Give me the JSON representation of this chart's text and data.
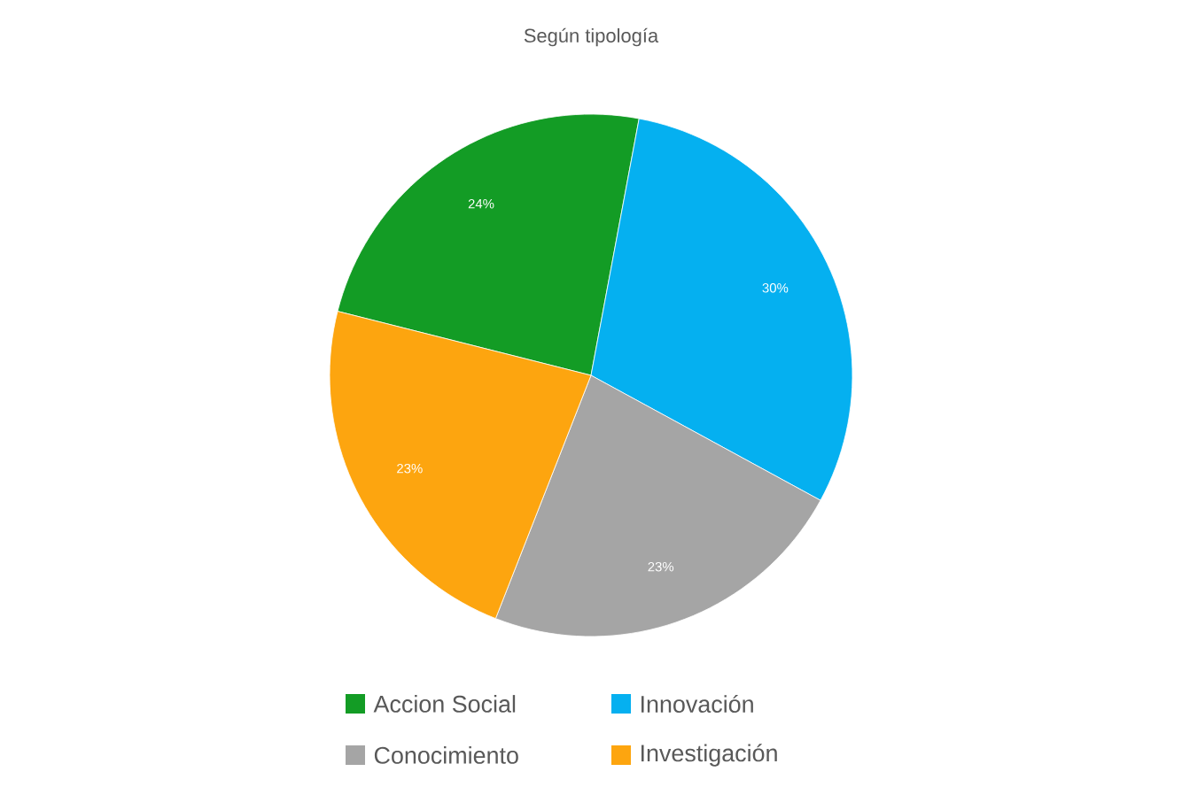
{
  "chart_data": {
    "type": "pie",
    "title": "Según tipología",
    "categories": [
      "Accion Social",
      "Innovación",
      "Conocimiento",
      "Investigación"
    ],
    "values": [
      24,
      30,
      23,
      23
    ],
    "value_labels": [
      "24%",
      "30%",
      "23%",
      "23%"
    ],
    "colors": [
      "#139c25",
      "#05b0f0",
      "#a5a5a5",
      "#fda50f"
    ],
    "legend": "bottom"
  }
}
